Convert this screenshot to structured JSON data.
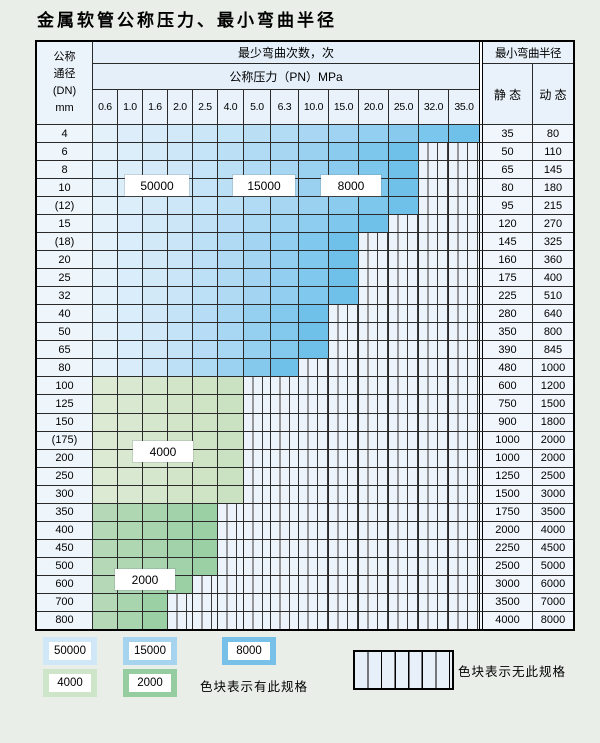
{
  "title": "金属软管公称压力、最小弯曲半径",
  "header": {
    "dn_label_lines": [
      "公称",
      "通径",
      "(DN)",
      "mm"
    ],
    "cycles_label": "最少弯曲次数，次",
    "pressure_label": "公称压力（PN）MPa",
    "radius_label": "最小弯曲半径",
    "static_label": "静 态",
    "dynamic_label": "动 态",
    "pressures": [
      "0.6",
      "1.0",
      "1.6",
      "2.0",
      "2.5",
      "4.0",
      "5.0",
      "6.3",
      "10.0",
      "15.0",
      "20.0",
      "25.0",
      "32.0",
      "35.0"
    ]
  },
  "rows": [
    {
      "dn": "4",
      "span": 14,
      "zone": "blue",
      "static": "35",
      "dynamic": "80"
    },
    {
      "dn": "6",
      "span": 12,
      "zone": "blue",
      "static": "50",
      "dynamic": "110"
    },
    {
      "dn": "8",
      "span": 12,
      "zone": "blue",
      "static": "65",
      "dynamic": "145"
    },
    {
      "dn": "10",
      "span": 12,
      "zone": "blue",
      "static": "80",
      "dynamic": "180"
    },
    {
      "dn": "(12)",
      "span": 12,
      "zone": "blue",
      "static": "95",
      "dynamic": "215"
    },
    {
      "dn": "15",
      "span": 11,
      "zone": "blue",
      "static": "120",
      "dynamic": "270"
    },
    {
      "dn": "(18)",
      "span": 10,
      "zone": "blue",
      "static": "145",
      "dynamic": "325"
    },
    {
      "dn": "20",
      "span": 10,
      "zone": "blue",
      "static": "160",
      "dynamic": "360"
    },
    {
      "dn": "25",
      "span": 10,
      "zone": "blue",
      "static": "175",
      "dynamic": "400"
    },
    {
      "dn": "32",
      "span": 10,
      "zone": "blue",
      "static": "225",
      "dynamic": "510"
    },
    {
      "dn": "40",
      "span": 9,
      "zone": "blue",
      "static": "280",
      "dynamic": "640"
    },
    {
      "dn": "50",
      "span": 9,
      "zone": "blue",
      "static": "350",
      "dynamic": "800"
    },
    {
      "dn": "65",
      "span": 9,
      "zone": "blue",
      "static": "390",
      "dynamic": "845"
    },
    {
      "dn": "80",
      "span": 8,
      "zone": "blue",
      "static": "480",
      "dynamic": "1000"
    },
    {
      "dn": "100",
      "span": 6,
      "zone": "green4",
      "static": "600",
      "dynamic": "1200"
    },
    {
      "dn": "125",
      "span": 6,
      "zone": "green4",
      "static": "750",
      "dynamic": "1500"
    },
    {
      "dn": "150",
      "span": 6,
      "zone": "green4",
      "static": "900",
      "dynamic": "1800"
    },
    {
      "dn": "(175)",
      "span": 6,
      "zone": "green4",
      "static": "1000",
      "dynamic": "2000"
    },
    {
      "dn": "200",
      "span": 6,
      "zone": "green4",
      "static": "1000",
      "dynamic": "2000"
    },
    {
      "dn": "250",
      "span": 6,
      "zone": "green4",
      "static": "1250",
      "dynamic": "2500"
    },
    {
      "dn": "300",
      "span": 6,
      "zone": "green4",
      "static": "1500",
      "dynamic": "3000"
    },
    {
      "dn": "350",
      "span": 5,
      "zone": "green2",
      "static": "1750",
      "dynamic": "3500"
    },
    {
      "dn": "400",
      "span": 5,
      "zone": "green2",
      "static": "2000",
      "dynamic": "4000"
    },
    {
      "dn": "450",
      "span": 5,
      "zone": "green2",
      "static": "2250",
      "dynamic": "4500"
    },
    {
      "dn": "500",
      "span": 5,
      "zone": "green2",
      "static": "2500",
      "dynamic": "5000"
    },
    {
      "dn": "600",
      "span": 4,
      "zone": "green2",
      "static": "3000",
      "dynamic": "6000"
    },
    {
      "dn": "700",
      "span": 3,
      "zone": "green2",
      "static": "3500",
      "dynamic": "7000"
    },
    {
      "dn": "800",
      "span": 3,
      "zone": "green2",
      "static": "4000",
      "dynamic": "8000"
    }
  ],
  "overlay_labels": [
    "50000",
    "15000",
    "8000",
    "4000",
    "2000"
  ],
  "legend": {
    "items": [
      {
        "label": "50000",
        "color": "#cfe7f6"
      },
      {
        "label": "15000",
        "color": "#a6d4ef"
      },
      {
        "label": "8000",
        "color": "#77c1e8"
      },
      {
        "label": "4000",
        "color": "#cfe5ca"
      },
      {
        "label": "2000",
        "color": "#95cda0"
      }
    ],
    "has_spec_text": "色块表示有此规格",
    "no_spec_text": "色块表示无此规格"
  },
  "colors": {
    "blue_stops": [
      "#e3f1fb",
      "#c9e5f7",
      "#a3d5f2",
      "#6fc1ea"
    ],
    "green4_stops": [
      "#dcead3",
      "#cbe2c2"
    ],
    "green2_stops": [
      "#b5d9b7",
      "#9bcfa4"
    ],
    "striped_bg": "#edf3fb",
    "stripe_line": "#3a3a3a",
    "page_bg": "#e9eee9"
  }
}
